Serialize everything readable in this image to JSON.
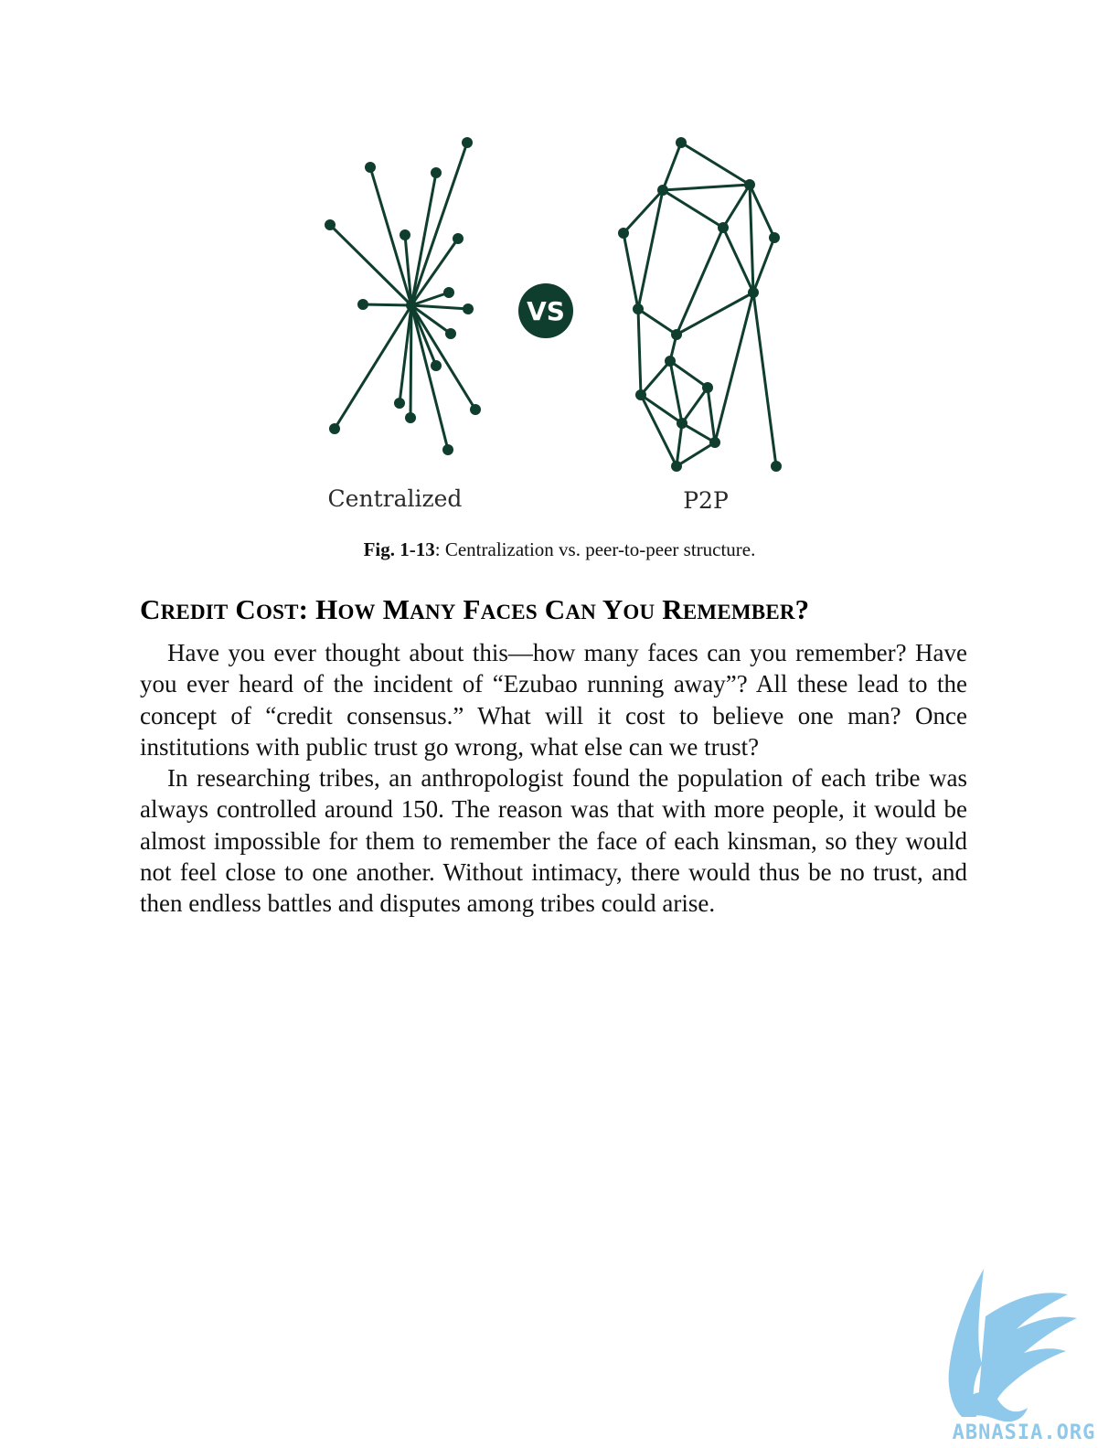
{
  "figure": {
    "left_label": "Centralized",
    "vs_label": "VS",
    "right_label": "P2P"
  },
  "caption": {
    "figure_number": "Fig. 1-13",
    "text": ": Centralization vs. peer-to-peer structure."
  },
  "heading": {
    "words": [
      {
        "first": "C",
        "rest": "REDIT"
      },
      {
        "first": "C",
        "rest": "OST:"
      },
      {
        "first": "H",
        "rest": "OW"
      },
      {
        "first": "M",
        "rest": "ANY"
      },
      {
        "first": "F",
        "rest": "ACES"
      },
      {
        "first": "C",
        "rest": "AN"
      },
      {
        "first": "Y",
        "rest": "OU"
      },
      {
        "first": "R",
        "rest": "EMEMBER?"
      }
    ]
  },
  "paragraphs": [
    "Have you ever thought about this—how many faces can you remember? Have you ever heard of the incident of “Ezubao running away”? All these lead to the concept of “credit consensus.” What will it cost to believe one man? Once institutions with public trust go wrong, what else can we trust?",
    "In researching tribes, an anthropologist found the population of each tribe was always controlled around 150. The reason was that with more people, it would be almost impossible for them to remember the face of each kinsman, so they would not feel close to one another. Without intimacy, there would thus be no trust, and then endless battles and disputes among tribes could arise."
  ],
  "watermark": {
    "text": "ABNASIA.ORG",
    "color": "#8ec8ea"
  },
  "colors": {
    "network": "#0f3d2e"
  }
}
